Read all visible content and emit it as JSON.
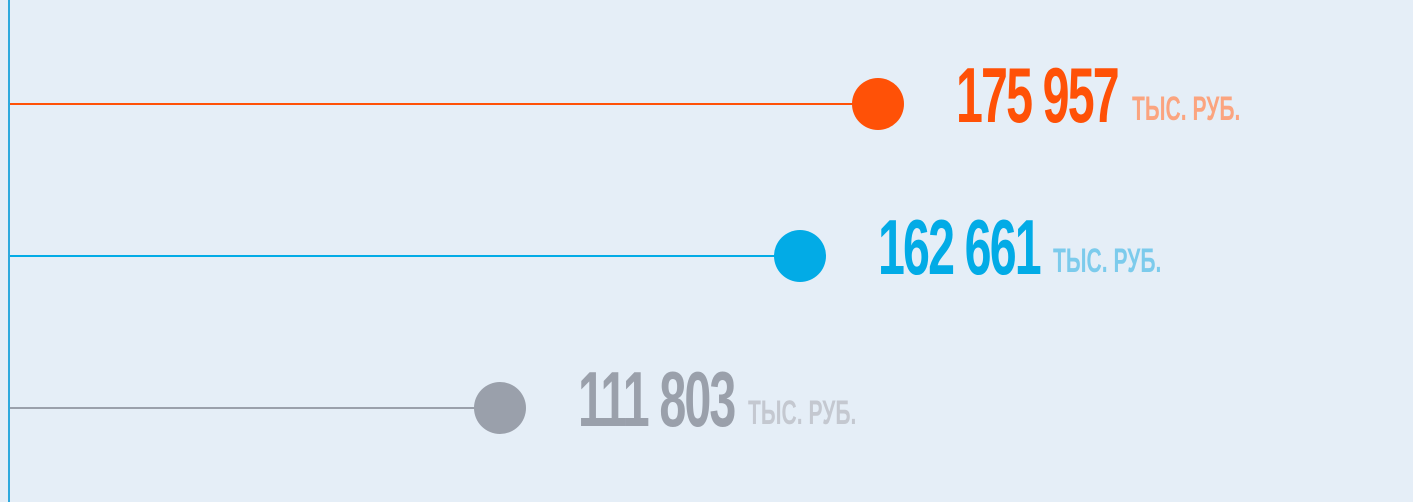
{
  "chart_data": {
    "type": "lollipop",
    "orientation": "horizontal",
    "grid": false,
    "legend": "none",
    "series": [
      {
        "values": [
          175957,
          162661,
          111803
        ],
        "colors": [
          "#ff5107",
          "#02abe6",
          "#9aa0ab"
        ],
        "unit_colors": [
          "#fba47f",
          "#7ccbec",
          "#c4c8d0"
        ]
      }
    ],
    "value_labels": [
      "175 957",
      "162 661",
      "111 803"
    ],
    "unit_labels": [
      "ТЫС. РУБ.",
      "ТЫС. РУБ.",
      "ТЫС. РУБ."
    ],
    "axis_color": "#2fa9dd",
    "background": "#e5eef7"
  }
}
